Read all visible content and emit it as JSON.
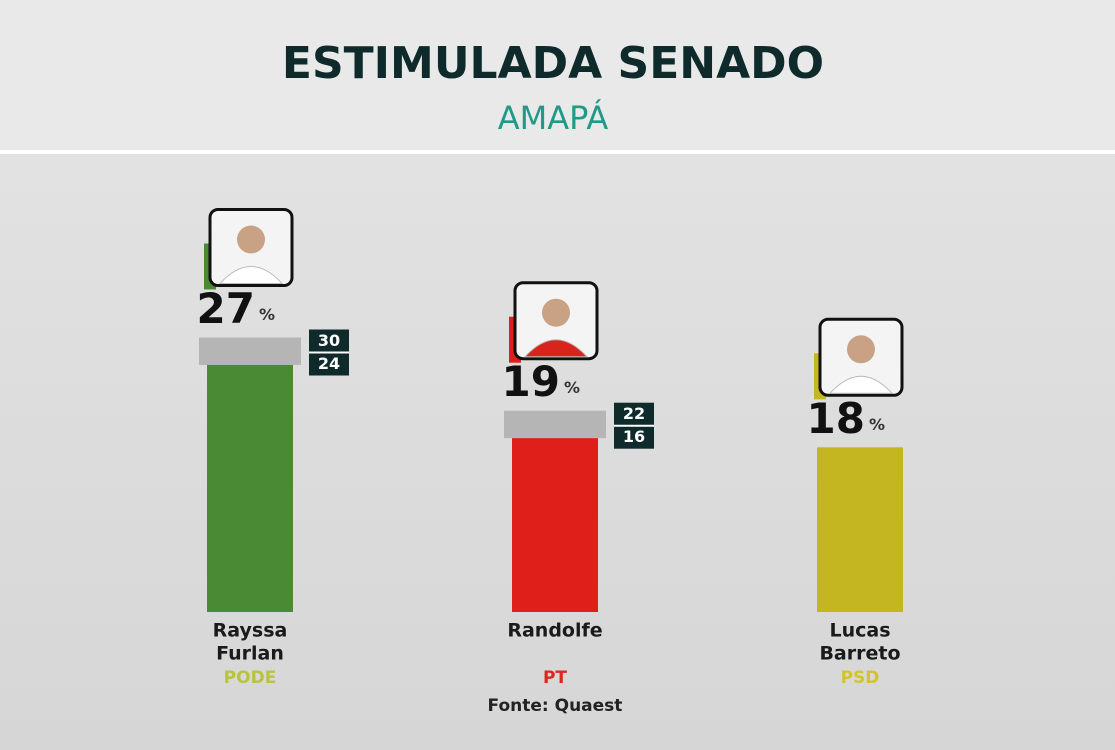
{
  "chart_data": {
    "type": "bar",
    "title": "ESTIMULADA SENADO",
    "subtitle": "AMAPÁ",
    "categories": [
      [
        "Rayssa",
        "Furlan"
      ],
      [
        "Randolfe"
      ],
      [
        "Lucas",
        "Barreto"
      ]
    ],
    "parties": [
      "PODE",
      "PT",
      "PSD"
    ],
    "values": [
      27,
      19,
      18
    ],
    "value_suffix": "%",
    "upper": [
      30,
      22,
      null
    ],
    "lower": [
      24,
      16,
      null
    ],
    "colors": [
      "#4a8a34",
      "#de1f1a",
      "#c4b620"
    ],
    "party_colors": [
      "#b9c43c",
      "#e0261e",
      "#d2c42a"
    ],
    "source": "Fonte: Quaest"
  }
}
